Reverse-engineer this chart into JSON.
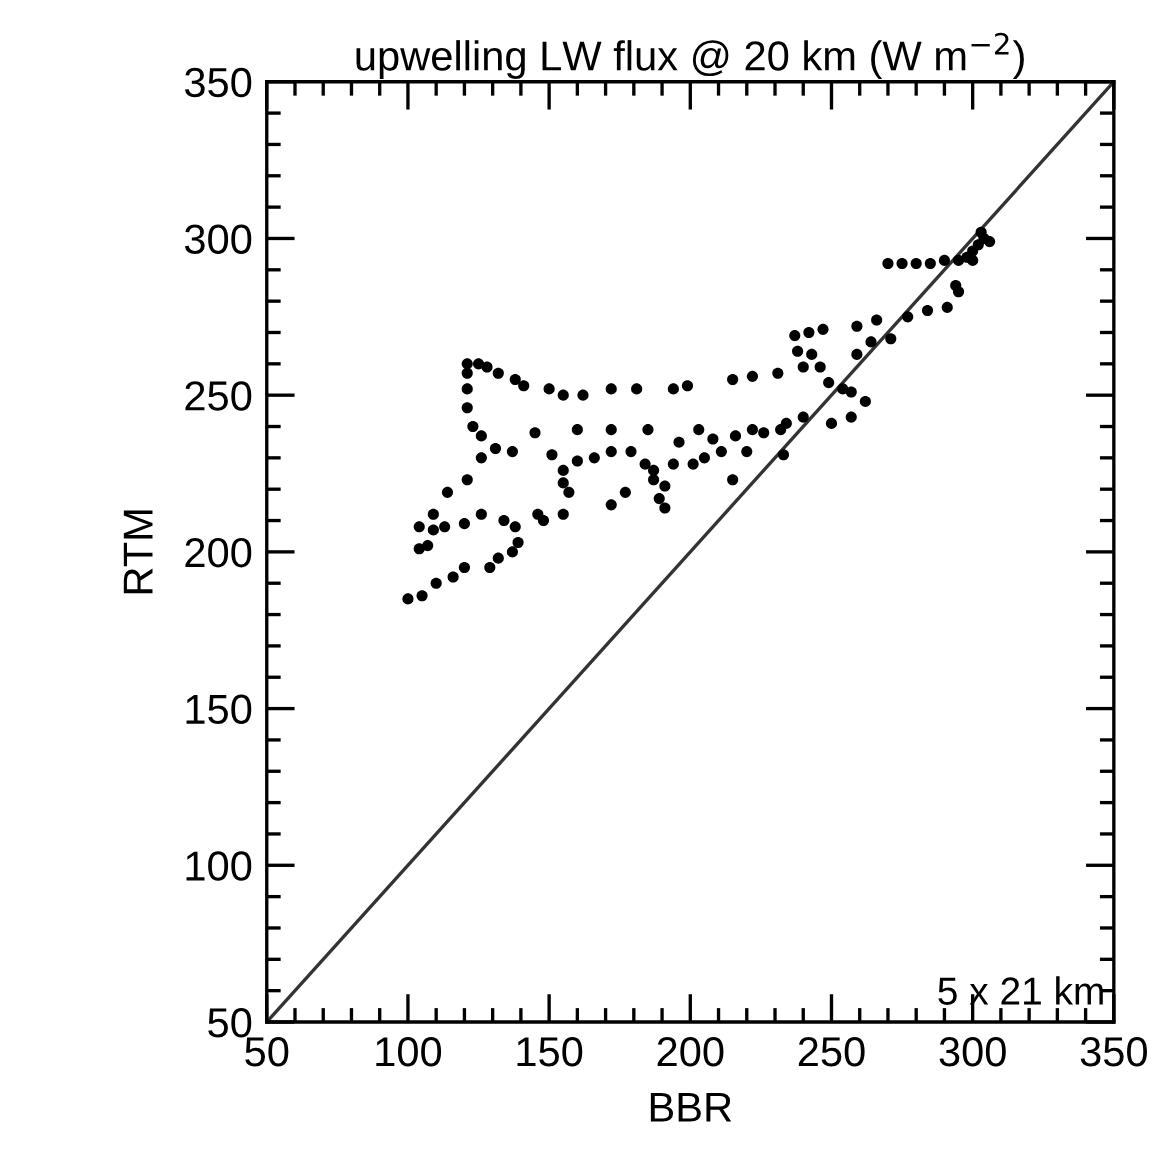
{
  "chart_data": {
    "type": "scatter",
    "title": "upwelling LW flux @ 20 km (W m$^{−2}$)",
    "xlabel": "BBR",
    "ylabel": "RTM",
    "xlim": [
      50,
      350
    ],
    "ylim": [
      50,
      350
    ],
    "xticks": [
      50,
      100,
      150,
      200,
      250,
      300,
      350
    ],
    "yticks": [
      50,
      100,
      150,
      200,
      250,
      300,
      350
    ],
    "annotations": [
      "5 x 21 km"
    ],
    "series": [
      {
        "marker": "circle",
        "color": "#000000",
        "x": [
          100,
          105,
          110,
          116,
          120,
          129,
          132,
          137,
          139,
          138,
          134,
          126,
          120,
          113,
          109,
          104,
          107,
          104,
          109,
          114,
          121,
          126,
          126,
          123,
          121,
          121,
          121,
          121,
          125,
          128,
          132,
          138,
          141,
          150,
          155,
          162,
          172,
          181,
          194,
          199,
          215,
          222,
          231,
          240,
          238,
          237,
          242,
          247,
          243,
          246,
          249,
          254,
          257,
          262,
          257,
          250,
          131,
          137,
          145,
          160,
          172,
          185,
          151,
          146,
          148,
          155,
          157,
          155,
          155,
          160,
          166,
          172,
          179,
          184,
          187,
          177,
          172,
          196,
          203,
          208,
          211,
          205,
          201,
          194,
          187,
          191,
          189,
          191,
          216,
          222,
          226,
          232,
          234,
          240,
          220,
          215,
          233,
          259,
          264,
          259,
          266,
          271,
          277,
          284,
          291,
          295,
          294,
          270,
          275,
          280,
          285,
          290,
          295,
          298,
          300,
          302,
          304,
          303,
          306,
          300
        ],
        "values": [
          185,
          186,
          190,
          192,
          195,
          195,
          198,
          200,
          203,
          208,
          210,
          212,
          209,
          208,
          207,
          208,
          202,
          201,
          212,
          219,
          223,
          230,
          237,
          240,
          246,
          252,
          257,
          260,
          260,
          259,
          257,
          255,
          253,
          252,
          250,
          250,
          252,
          252,
          252,
          253,
          255,
          256,
          257,
          259,
          264,
          269,
          270,
          271,
          263,
          259,
          254,
          252,
          251,
          248,
          243,
          241,
          233,
          232,
          238,
          239,
          239,
          239,
          231,
          212,
          210,
          212,
          219,
          222,
          226,
          229,
          230,
          232,
          232,
          228,
          223,
          219,
          215,
          235,
          239,
          236,
          232,
          230,
          228,
          228,
          226,
          221,
          217,
          214,
          237,
          239,
          238,
          239,
          241,
          243,
          232,
          223,
          231,
          263,
          267,
          272,
          274,
          268,
          275,
          277,
          278,
          283,
          285,
          292,
          292,
          292,
          292,
          293,
          293,
          294,
          296,
          298,
          300,
          302,
          299,
          293
        ]
      },
      {
        "type": "line",
        "color": "#333333",
        "x": [
          50,
          350
        ],
        "values": [
          50,
          350
        ]
      }
    ]
  }
}
